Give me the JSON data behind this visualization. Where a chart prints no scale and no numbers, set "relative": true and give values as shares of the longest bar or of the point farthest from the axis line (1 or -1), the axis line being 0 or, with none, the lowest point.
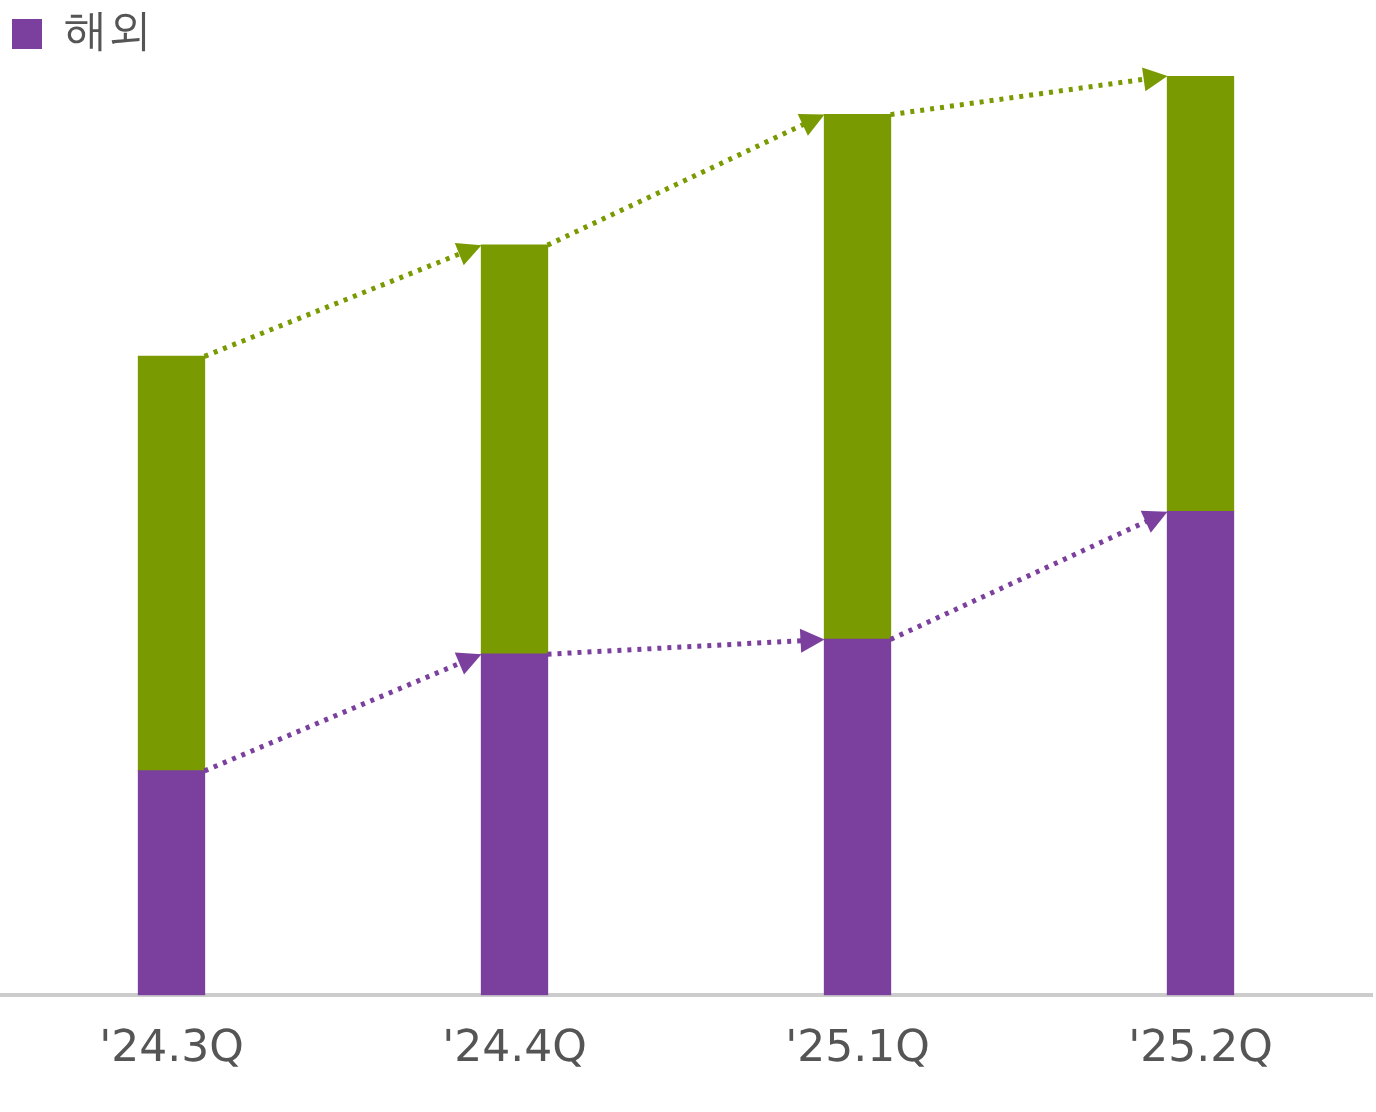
{
  "chart_data": {
    "type": "bar",
    "stacked": true,
    "relative": true,
    "categories": [
      "'24.3Q",
      "'24.4Q",
      "'25.1Q",
      "'25.2Q"
    ],
    "series": [
      {
        "name": "해외",
        "color": "#7b3f9e",
        "values": [
          0.244,
          0.371,
          0.387,
          0.526
        ]
      },
      {
        "color": "#7a9a01",
        "values": [
          0.451,
          0.445,
          0.571,
          0.474
        ]
      }
    ],
    "legend": "top left",
    "grid": false
  }
}
